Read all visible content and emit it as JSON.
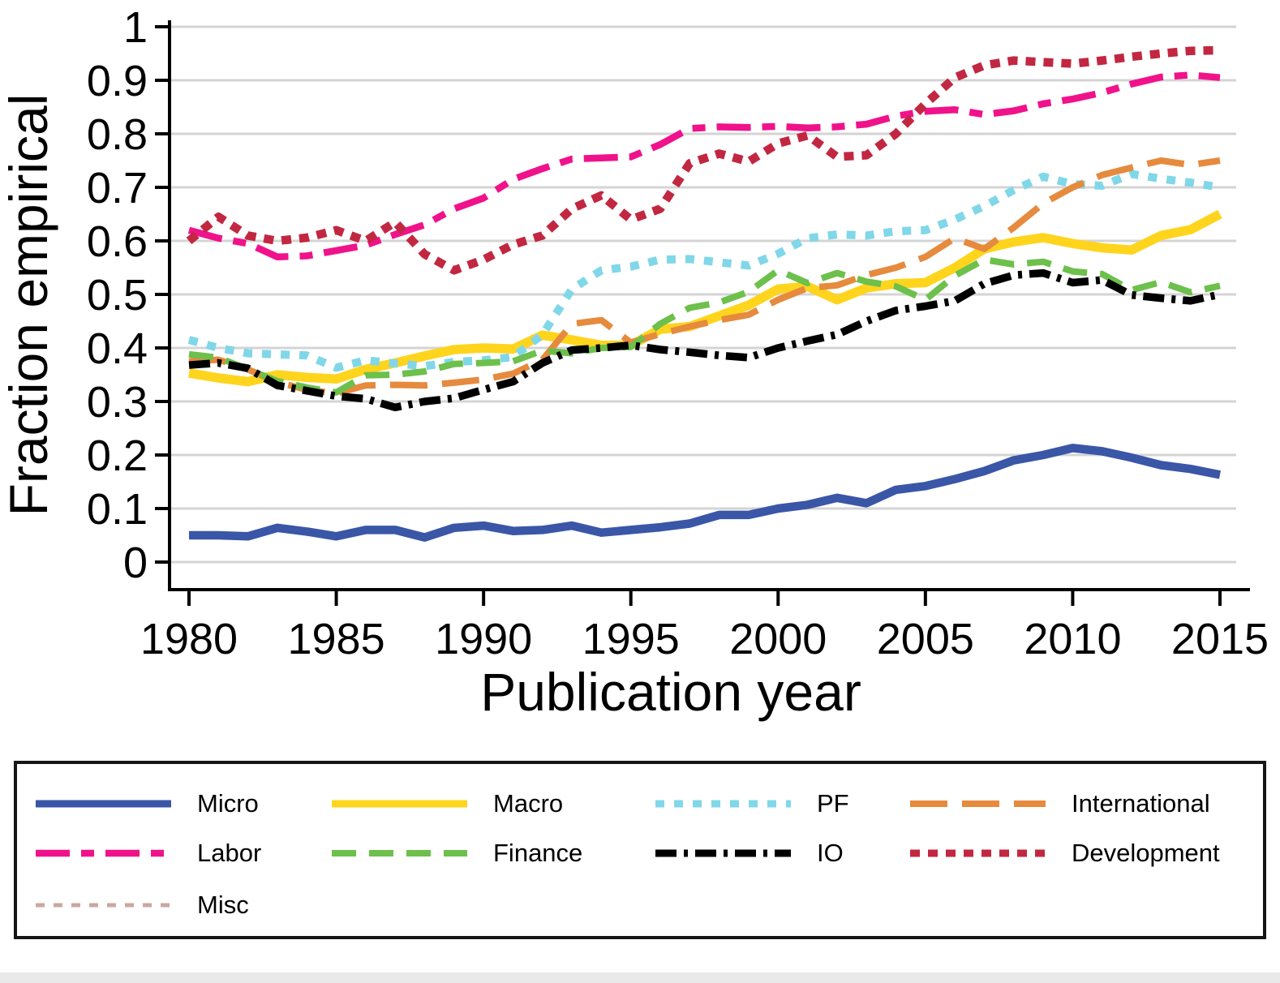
{
  "chart_data": {
    "type": "line",
    "title": "",
    "xlabel": "Publication year",
    "ylabel": "Fraction empirical",
    "x_range": [
      1980,
      2015
    ],
    "y_range": [
      0,
      1
    ],
    "grid": "horizontal",
    "gridline_color": "#d4d4d4",
    "axis_color": "#000000",
    "x_ticks": [
      {
        "v": 1980,
        "label": "1980"
      },
      {
        "v": 1985,
        "label": "1985"
      },
      {
        "v": 1990,
        "label": "1990"
      },
      {
        "v": 1995,
        "label": "1995"
      },
      {
        "v": 2000,
        "label": "2000"
      },
      {
        "v": 2005,
        "label": "2005"
      },
      {
        "v": 2010,
        "label": "2010"
      },
      {
        "v": 2015,
        "label": "2015"
      }
    ],
    "y_ticks": [
      {
        "v": 0,
        "label": "0"
      },
      {
        "v": 0.1,
        "label": "0.1"
      },
      {
        "v": 0.2,
        "label": "0.2"
      },
      {
        "v": 0.3,
        "label": "0.3"
      },
      {
        "v": 0.4,
        "label": "0.4"
      },
      {
        "v": 0.5,
        "label": "0.5"
      },
      {
        "v": 0.6,
        "label": "0.6"
      },
      {
        "v": 0.7,
        "label": "0.7"
      },
      {
        "v": 0.8,
        "label": "0.8"
      },
      {
        "v": 0.9,
        "label": "0.9"
      },
      {
        "v": 1,
        "label": "1"
      }
    ],
    "x": [
      1980,
      1981,
      1982,
      1983,
      1984,
      1985,
      1986,
      1987,
      1988,
      1989,
      1990,
      1991,
      1992,
      1993,
      1994,
      1995,
      1996,
      1997,
      1998,
      1999,
      2000,
      2001,
      2002,
      2003,
      2004,
      2005,
      2006,
      2007,
      2008,
      2009,
      2010,
      2011,
      2012,
      2013,
      2014,
      2015
    ],
    "series": [
      {
        "name": "Micro",
        "label": "Micro",
        "color": "#3A56A7",
        "dash": null,
        "width": 10.5,
        "values": [
          0.05,
          0.05,
          0.048,
          0.064,
          0.057,
          0.048,
          0.06,
          0.06,
          0.046,
          0.064,
          0.068,
          0.058,
          0.06,
          0.068,
          0.055,
          0.06,
          0.065,
          0.072,
          0.088,
          0.088,
          0.1,
          0.107,
          0.12,
          0.11,
          0.135,
          0.142,
          0.155,
          0.17,
          0.19,
          0.2,
          0.213,
          0.207,
          0.195,
          0.181,
          0.174,
          0.163
        ]
      },
      {
        "name": "Macro",
        "label": "Macro",
        "color": "#FFD41D",
        "dash": null,
        "width": 11.5,
        "values": [
          0.353,
          0.344,
          0.337,
          0.35,
          0.345,
          0.342,
          0.36,
          0.372,
          0.385,
          0.397,
          0.4,
          0.398,
          0.424,
          0.415,
          0.405,
          0.405,
          0.435,
          0.44,
          0.46,
          0.48,
          0.51,
          0.515,
          0.49,
          0.512,
          0.52,
          0.522,
          0.55,
          0.585,
          0.598,
          0.606,
          0.595,
          0.587,
          0.583,
          0.61,
          0.621,
          0.65
        ]
      },
      {
        "name": "PF",
        "label": "PF",
        "color": "#80D7E8",
        "dash": "11,12",
        "width": 10,
        "values": [
          0.415,
          0.4,
          0.39,
          0.388,
          0.386,
          0.363,
          0.377,
          0.371,
          0.366,
          0.374,
          0.377,
          0.383,
          0.425,
          0.51,
          0.545,
          0.552,
          0.565,
          0.566,
          0.56,
          0.554,
          0.576,
          0.605,
          0.612,
          0.61,
          0.618,
          0.62,
          0.64,
          0.665,
          0.695,
          0.72,
          0.706,
          0.703,
          0.725,
          0.716,
          0.709,
          0.7
        ]
      },
      {
        "name": "International",
        "label": "International",
        "color": "#E68A3D",
        "dash": "46,18",
        "width": 8,
        "values": [
          0.375,
          0.378,
          0.36,
          0.336,
          0.322,
          0.315,
          0.33,
          0.331,
          0.33,
          0.335,
          0.341,
          0.352,
          0.378,
          0.445,
          0.452,
          0.41,
          0.426,
          0.44,
          0.452,
          0.462,
          0.49,
          0.512,
          0.517,
          0.536,
          0.55,
          0.57,
          0.605,
          0.585,
          0.625,
          0.67,
          0.7,
          0.723,
          0.737,
          0.75,
          0.742,
          0.75
        ]
      },
      {
        "name": "Labor",
        "label": "Labor",
        "color": "#F0128B",
        "dash": "42,14,16,14",
        "width": 8.5,
        "values": [
          0.62,
          0.605,
          0.595,
          0.57,
          0.572,
          0.582,
          0.592,
          0.612,
          0.63,
          0.66,
          0.68,
          0.715,
          0.735,
          0.753,
          0.755,
          0.757,
          0.78,
          0.81,
          0.813,
          0.812,
          0.814,
          0.811,
          0.813,
          0.818,
          0.833,
          0.842,
          0.845,
          0.836,
          0.843,
          0.856,
          0.865,
          0.877,
          0.893,
          0.906,
          0.91,
          0.905
        ]
      },
      {
        "name": "Finance",
        "label": "Finance",
        "color": "#6DC04B",
        "dash": "30,16",
        "width": 8,
        "values": [
          0.388,
          0.382,
          0.36,
          0.338,
          0.326,
          0.317,
          0.349,
          0.35,
          0.356,
          0.37,
          0.372,
          0.375,
          0.395,
          0.39,
          0.4,
          0.402,
          0.445,
          0.475,
          0.485,
          0.505,
          0.545,
          0.521,
          0.54,
          0.524,
          0.515,
          0.49,
          0.535,
          0.565,
          0.556,
          0.561,
          0.543,
          0.538,
          0.508,
          0.523,
          0.504,
          0.516
        ]
      },
      {
        "name": "IO",
        "label": "IO",
        "color": "#000000",
        "dash": "26,9,5,9",
        "width": 9.5,
        "values": [
          0.368,
          0.372,
          0.362,
          0.33,
          0.32,
          0.31,
          0.305,
          0.289,
          0.3,
          0.306,
          0.322,
          0.337,
          0.372,
          0.396,
          0.4,
          0.405,
          0.397,
          0.392,
          0.386,
          0.382,
          0.4,
          0.413,
          0.425,
          0.45,
          0.47,
          0.478,
          0.488,
          0.52,
          0.536,
          0.54,
          0.522,
          0.527,
          0.499,
          0.493,
          0.488,
          0.5
        ]
      },
      {
        "name": "Development",
        "label": "Development",
        "color": "#C22742",
        "dash": "12,10",
        "width": 10.5,
        "values": [
          0.6,
          0.645,
          0.61,
          0.6,
          0.606,
          0.62,
          0.6,
          0.635,
          0.575,
          0.545,
          0.565,
          0.593,
          0.61,
          0.66,
          0.685,
          0.64,
          0.66,
          0.745,
          0.763,
          0.748,
          0.782,
          0.797,
          0.757,
          0.76,
          0.8,
          0.856,
          0.905,
          0.928,
          0.937,
          0.934,
          0.931,
          0.937,
          0.944,
          0.95,
          0.955,
          0.956
        ]
      },
      {
        "name": "Misc",
        "label": "Misc",
        "color": "#C9A8A0",
        "dash": "11,11",
        "width": 5,
        "visible_in_plot": false,
        "values": []
      }
    ]
  },
  "legend": {
    "position": "bottom",
    "columns": 4,
    "items": [
      "Micro",
      "Macro",
      "PF",
      "International",
      "Labor",
      "Finance",
      "IO",
      "Development",
      "Misc"
    ]
  }
}
